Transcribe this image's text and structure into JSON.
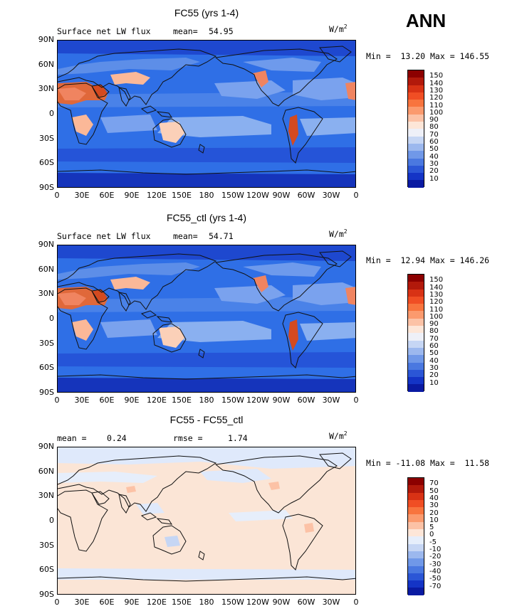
{
  "season": "ANN",
  "colors": {
    "ocean_base": "#2f6fe6",
    "diff_base": "#fbe5d6",
    "coast": "#111111"
  },
  "panels": [
    {
      "title": "FC55 (yrs 1-4)",
      "left_label": "Surface net LW flux",
      "stat_label": "mean=",
      "stat_value": "54.95",
      "units_base": "W/m",
      "units_exp": "2",
      "minmax": "Min =  13.20 Max = 146.55",
      "lat_labels": [
        "90N",
        "60N",
        "30N",
        "0",
        "30S",
        "60S",
        "90S"
      ],
      "lon_labels": [
        "0",
        "30E",
        "60E",
        "90E",
        "120E",
        "150E",
        "180",
        "150W",
        "120W",
        "90W",
        "60W",
        "30W",
        "0"
      ],
      "colorbar_labels": [
        "150",
        "140",
        "130",
        "120",
        "110",
        "100",
        "90",
        "80",
        "70",
        "60",
        "50",
        "40",
        "30",
        "20",
        "10"
      ],
      "colorbar_colors": [
        "#8c0000",
        "#b2190b",
        "#d83215",
        "#f04e24",
        "#f8743e",
        "#fb9a6e",
        "#fcc2a6",
        "#fde6d8",
        "#eef0f8",
        "#c6d6f4",
        "#9cb8ee",
        "#7098e8",
        "#4a78e0",
        "#2b56d6",
        "#1434c6",
        "#0a1aa2"
      ]
    },
    {
      "title": "FC55_ctl (yrs 1-4)",
      "left_label": "Surface net LW flux",
      "stat_label": "mean=",
      "stat_value": "54.71",
      "units_base": "W/m",
      "units_exp": "2",
      "minmax": "Min =  12.94 Max = 146.26",
      "lat_labels": [
        "90N",
        "60N",
        "30N",
        "0",
        "30S",
        "60S",
        "90S"
      ],
      "lon_labels": [
        "0",
        "30E",
        "60E",
        "90E",
        "120E",
        "150E",
        "180",
        "150W",
        "120W",
        "90W",
        "60W",
        "30W",
        "0"
      ],
      "colorbar_labels": [
        "150",
        "140",
        "130",
        "120",
        "110",
        "100",
        "90",
        "80",
        "70",
        "60",
        "50",
        "40",
        "30",
        "20",
        "10"
      ],
      "colorbar_colors": [
        "#8c0000",
        "#b2190b",
        "#d83215",
        "#f04e24",
        "#f8743e",
        "#fb9a6e",
        "#fcc2a6",
        "#fde6d8",
        "#eef0f8",
        "#c6d6f4",
        "#9cb8ee",
        "#7098e8",
        "#4a78e0",
        "#2b56d6",
        "#1434c6",
        "#0a1aa2"
      ]
    },
    {
      "title": "FC55 - FC55_ctl",
      "left_label": "mean =",
      "left_value": "0.24",
      "stat_label": "rmse =",
      "stat_value": "1.74",
      "units_base": "W/m",
      "units_exp": "2",
      "minmax": "Min = -11.08 Max =  11.58",
      "lat_labels": [
        "90N",
        "60N",
        "30N",
        "0",
        "30S",
        "60S",
        "90S"
      ],
      "lon_labels": [
        "0",
        "30E",
        "60E",
        "90E",
        "120E",
        "150E",
        "180",
        "150W",
        "120W",
        "90W",
        "60W",
        "30W",
        "0"
      ],
      "colorbar_labels": [
        "70",
        "50",
        "40",
        "30",
        "20",
        "10",
        "5",
        "0",
        "-5",
        "-10",
        "-20",
        "-30",
        "-40",
        "-50",
        "-70"
      ],
      "colorbar_colors": [
        "#8c0000",
        "#b2190b",
        "#d83215",
        "#f04e24",
        "#f8743e",
        "#fb9a6e",
        "#fcc2a6",
        "#fde6d8",
        "#e6eefb",
        "#c6d6f4",
        "#9cb8ee",
        "#7098e8",
        "#4a78e0",
        "#2b56d6",
        "#1434c6",
        "#0a1aa2"
      ]
    }
  ]
}
